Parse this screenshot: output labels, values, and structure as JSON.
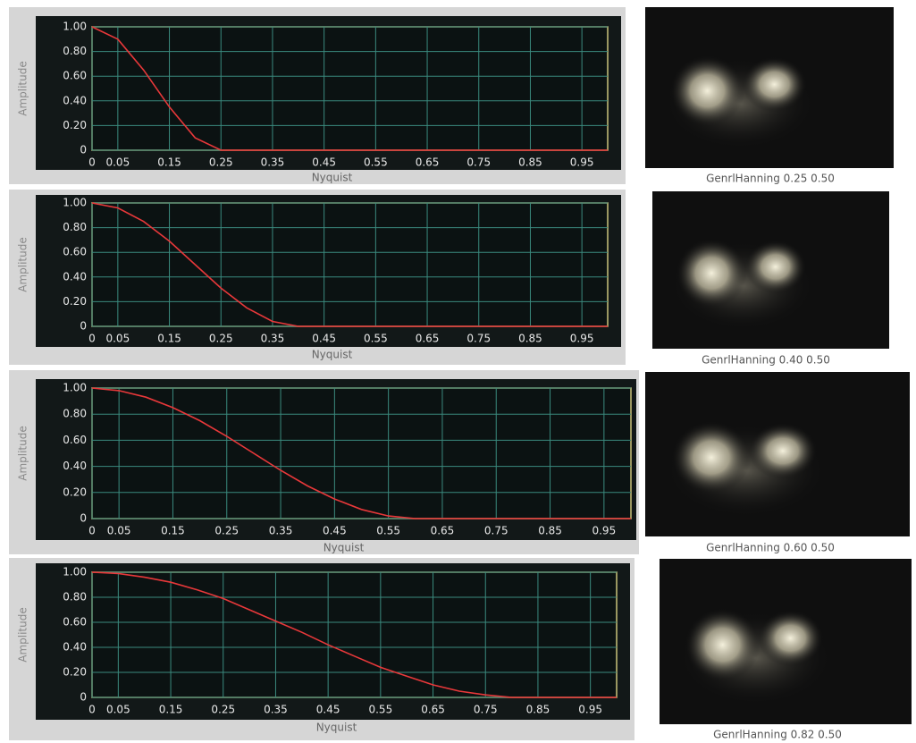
{
  "chart_data": [
    {
      "type": "line",
      "x_label": "Nyquist",
      "y_label": "Amplitude",
      "caption": "GenrlHanning 0.25 0.50",
      "x": [
        0,
        0.05,
        0.1,
        0.15,
        0.2,
        0.25,
        0.3,
        0.35,
        0.4,
        0.45,
        0.5,
        0.55,
        0.6,
        0.65,
        0.7,
        0.75,
        0.8,
        0.85,
        0.9,
        0.95,
        1
      ],
      "values": [
        1,
        0.9,
        0.65,
        0.35,
        0.1,
        0,
        0,
        0,
        0,
        0,
        0,
        0,
        0,
        0,
        0,
        0,
        0,
        0,
        0,
        0,
        0
      ],
      "color": "#e8383a",
      "xlim": [
        0,
        1
      ],
      "ylim": [
        0,
        1
      ],
      "xticks": [
        0,
        0.05,
        0.15,
        0.25,
        0.35,
        0.45,
        0.55,
        0.65,
        0.75,
        0.85,
        0.95
      ],
      "yticks": [
        0,
        {
          "value": 0.2,
          "label": "0.20"
        },
        {
          "value": 0.4,
          "label": "0.40"
        },
        {
          "value": 0.6,
          "label": "0.60"
        },
        {
          "value": 0.8,
          "label": "0.80"
        },
        {
          "value": 1,
          "label": "1.00"
        }
      ],
      "grid": true
    },
    {
      "type": "line",
      "x_label": "Nyquist",
      "y_label": "Amplitude",
      "caption": "GenrlHanning 0.40 0.50",
      "x": [
        0,
        0.05,
        0.1,
        0.15,
        0.2,
        0.25,
        0.3,
        0.35,
        0.4,
        0.45,
        0.5,
        0.55,
        0.6,
        0.65,
        0.7,
        0.75,
        0.8,
        0.85,
        0.9,
        0.95,
        1
      ],
      "values": [
        1,
        0.96,
        0.85,
        0.69,
        0.5,
        0.31,
        0.15,
        0.04,
        0,
        0,
        0,
        0,
        0,
        0,
        0,
        0,
        0,
        0,
        0,
        0,
        0
      ],
      "color": "#e8383a",
      "xlim": [
        0,
        1
      ],
      "ylim": [
        0,
        1
      ],
      "xticks": [
        0,
        0.05,
        0.15,
        0.25,
        0.35,
        0.45,
        0.55,
        0.65,
        0.75,
        0.85,
        0.95
      ],
      "yticks": [
        0,
        {
          "value": 0.2,
          "label": "0.20"
        },
        {
          "value": 0.4,
          "label": "0.40"
        },
        {
          "value": 0.6,
          "label": "0.60"
        },
        {
          "value": 0.8,
          "label": "0.80"
        },
        {
          "value": 1,
          "label": "1.00"
        }
      ],
      "grid": true
    },
    {
      "type": "line",
      "x_label": "Nyquist",
      "y_label": "Amplitude",
      "caption": "GenrlHanning 0.60 0.50",
      "x": [
        0,
        0.05,
        0.1,
        0.15,
        0.2,
        0.25,
        0.3,
        0.35,
        0.4,
        0.45,
        0.5,
        0.55,
        0.6,
        0.65,
        0.7,
        0.75,
        0.8,
        0.85,
        0.9,
        0.95,
        1
      ],
      "values": [
        1,
        0.98,
        0.93,
        0.85,
        0.75,
        0.63,
        0.5,
        0.37,
        0.25,
        0.15,
        0.07,
        0.02,
        0,
        0,
        0,
        0,
        0,
        0,
        0,
        0,
        0
      ],
      "color": "#e8383a",
      "xlim": [
        0,
        1
      ],
      "ylim": [
        0,
        1
      ],
      "xticks": [
        0,
        0.05,
        0.15,
        0.25,
        0.35,
        0.45,
        0.55,
        0.65,
        0.75,
        0.85,
        0.95
      ],
      "yticks": [
        0,
        {
          "value": 0.2,
          "label": "0.20"
        },
        {
          "value": 0.4,
          "label": "0.40"
        },
        {
          "value": 0.6,
          "label": "0.60"
        },
        {
          "value": 0.8,
          "label": "0.80"
        },
        {
          "value": 1,
          "label": "1.00"
        }
      ],
      "grid": true
    },
    {
      "type": "line",
      "x_label": "Nyquist",
      "y_label": "Amplitude",
      "caption": "GenrlHanning 0.82 0.50",
      "x": [
        0,
        0.05,
        0.1,
        0.15,
        0.2,
        0.25,
        0.3,
        0.35,
        0.4,
        0.45,
        0.5,
        0.55,
        0.6,
        0.65,
        0.7,
        0.75,
        0.8,
        0.85,
        0.9,
        0.95,
        1
      ],
      "values": [
        1,
        0.99,
        0.96,
        0.92,
        0.86,
        0.79,
        0.7,
        0.61,
        0.52,
        0.42,
        0.33,
        0.24,
        0.17,
        0.1,
        0.05,
        0.02,
        0,
        0,
        0,
        0,
        0
      ],
      "color": "#e8383a",
      "xlim": [
        0,
        1
      ],
      "ylim": [
        0,
        1
      ],
      "xticks": [
        0,
        0.05,
        0.15,
        0.25,
        0.35,
        0.45,
        0.55,
        0.65,
        0.75,
        0.85,
        0.95
      ],
      "yticks": [
        0,
        {
          "value": 0.2,
          "label": "0.20"
        },
        {
          "value": 0.4,
          "label": "0.40"
        },
        {
          "value": 0.6,
          "label": "0.60"
        },
        {
          "value": 0.8,
          "label": "0.80"
        },
        {
          "value": 1,
          "label": "1.00"
        }
      ],
      "grid": true
    }
  ]
}
